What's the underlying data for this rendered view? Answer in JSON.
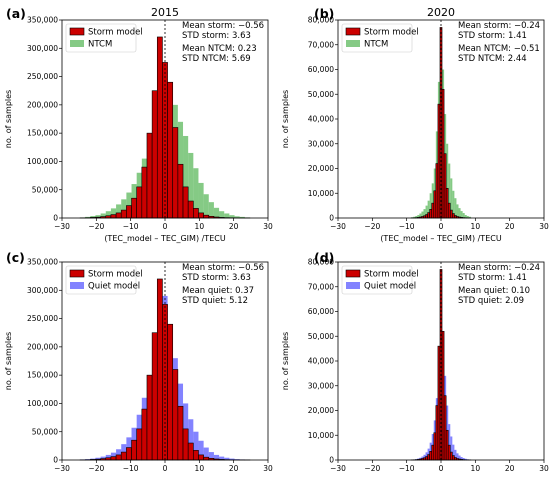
{
  "chart_data": [
    {
      "panel": "(a)",
      "type": "bar",
      "title": "2015",
      "xlabel": "(TEC_model – TEC_GIM) /TECU",
      "ylabel": "no. of samples",
      "xlim": [
        -30,
        30
      ],
      "ylim": [
        0,
        350000
      ],
      "xticks": [
        -30,
        -20,
        -10,
        0,
        10,
        20,
        30
      ],
      "yticks": [
        0,
        50000,
        100000,
        150000,
        200000,
        250000,
        300000,
        350000
      ],
      "ytick_labels": [
        "0",
        "50,000",
        "100,000",
        "150,000",
        "200,000",
        "250,000",
        "300,000",
        "350,000"
      ],
      "bin_width": 1.5,
      "x": [
        -24,
        -22.5,
        -21,
        -19.5,
        -18,
        -16.5,
        -15,
        -13.5,
        -12,
        -10.5,
        -9,
        -7.5,
        -6,
        -4.5,
        -3,
        -1.5,
        0,
        1.5,
        3,
        4.5,
        6,
        7.5,
        9,
        10.5,
        12,
        13.5,
        15,
        16.5,
        18,
        19.5,
        21,
        22.5,
        24
      ],
      "series": [
        {
          "name": "NTCM",
          "color": "#5cb85c",
          "opacity": 0.75,
          "values": [
            1000,
            2000,
            3500,
            5000,
            8000,
            12000,
            17000,
            24000,
            33000,
            45000,
            60000,
            80000,
            105000,
            135000,
            165000,
            200000,
            245000,
            230000,
            200000,
            170000,
            145000,
            115000,
            88000,
            62000,
            42000,
            28000,
            18000,
            12000,
            8000,
            5000,
            3000,
            2000,
            1000
          ]
        },
        {
          "name": "Storm model",
          "color": "#cc0000",
          "opacity": 1.0,
          "values": [
            200,
            500,
            1000,
            1500,
            2500,
            4000,
            6000,
            9000,
            14000,
            22000,
            35000,
            55000,
            90000,
            150000,
            225000,
            320000,
            275000,
            240000,
            160000,
            95000,
            55000,
            30000,
            17000,
            9000,
            5000,
            3000,
            1800,
            1000,
            600,
            400,
            300,
            200,
            100
          ]
        }
      ],
      "legend_loc": "top-left",
      "annotations": [
        "Mean storm: −0.56",
        "STD storm: 3.63",
        "Mean NTCM: 0.23",
        "STD NTCM: 5.69"
      ]
    },
    {
      "panel": "(b)",
      "type": "bar",
      "title": "2020",
      "xlabel": "(TEC_model – TEC_GIM) /TECU",
      "ylabel": "no. of samples",
      "xlim": [
        -30,
        30
      ],
      "ylim": [
        0,
        80000
      ],
      "xticks": [
        -30,
        -20,
        -10,
        0,
        10,
        20,
        30
      ],
      "yticks": [
        0,
        10000,
        20000,
        30000,
        40000,
        50000,
        60000,
        70000,
        80000
      ],
      "ytick_labels": [
        "0",
        "10,000",
        "20,000",
        "30,000",
        "40,000",
        "50,000",
        "60,000",
        "70,000",
        "80,000"
      ],
      "bin_width": 0.6,
      "x": [
        -8.4,
        -7.8,
        -7.2,
        -6.6,
        -6,
        -5.4,
        -4.8,
        -4.2,
        -3.6,
        -3,
        -2.4,
        -1.8,
        -1.2,
        -0.6,
        0,
        0.6,
        1.2,
        1.8,
        2.4,
        3,
        3.6,
        4.2,
        4.8,
        5.4,
        6,
        6.6,
        7.2,
        7.8,
        8.4
      ],
      "series": [
        {
          "name": "NTCM",
          "color": "#5cb85c",
          "opacity": 0.75,
          "values": [
            300,
            500,
            800,
            1200,
            1800,
            2600,
            3600,
            5000,
            7000,
            10000,
            14000,
            20000,
            35000,
            55000,
            67000,
            60000,
            42000,
            30000,
            22000,
            16000,
            11000,
            8000,
            5500,
            4000,
            2800,
            2000,
            1200,
            800,
            500
          ]
        },
        {
          "name": "Storm model",
          "color": "#cc0000",
          "opacity": 1.0,
          "values": [
            50,
            100,
            150,
            250,
            400,
            600,
            900,
            1400,
            2200,
            3500,
            6000,
            11000,
            22000,
            46000,
            77000,
            52000,
            26000,
            12000,
            6000,
            3200,
            1800,
            1000,
            600,
            400,
            250,
            150,
            100,
            60,
            40
          ]
        }
      ],
      "legend_loc": "top-left",
      "annotations": [
        "Mean storm: −0.24",
        "STD storm: 1.41",
        "Mean NTCM: −0.51",
        "STD NTCM: 2.44"
      ]
    },
    {
      "panel": "(c)",
      "type": "bar",
      "title": "",
      "xlabel": "(TEC_model – TEC_GIM) /TECU",
      "ylabel": "no. of samples",
      "xlim": [
        -30,
        30
      ],
      "ylim": [
        0,
        350000
      ],
      "xticks": [
        -30,
        -20,
        -10,
        0,
        10,
        20,
        30
      ],
      "yticks": [
        0,
        50000,
        100000,
        150000,
        200000,
        250000,
        300000,
        350000
      ],
      "ytick_labels": [
        "0",
        "50,000",
        "100,000",
        "150,000",
        "200,000",
        "250,000",
        "300,000",
        "350,000"
      ],
      "bin_width": 1.5,
      "x": [
        -24,
        -22.5,
        -21,
        -19.5,
        -18,
        -16.5,
        -15,
        -13.5,
        -12,
        -10.5,
        -9,
        -7.5,
        -6,
        -4.5,
        -3,
        -1.5,
        0,
        1.5,
        3,
        4.5,
        6,
        7.5,
        9,
        10.5,
        12,
        13.5,
        15,
        16.5,
        18,
        19.5,
        21,
        22.5,
        24
      ],
      "series": [
        {
          "name": "Quiet model",
          "color": "#5a5aff",
          "opacity": 0.75,
          "values": [
            1000,
            1500,
            2500,
            4000,
            6000,
            9000,
            13000,
            19000,
            28000,
            40000,
            57000,
            80000,
            110000,
            150000,
            200000,
            260000,
            290000,
            230000,
            180000,
            135000,
            100000,
            72000,
            50000,
            34000,
            22000,
            14000,
            9000,
            6000,
            4000,
            2500,
            1500,
            1000,
            500
          ]
        },
        {
          "name": "Storm model",
          "color": "#cc0000",
          "opacity": 1.0,
          "values": [
            200,
            500,
            1000,
            1500,
            2500,
            4000,
            6000,
            9000,
            14000,
            22000,
            35000,
            55000,
            90000,
            150000,
            225000,
            320000,
            275000,
            240000,
            160000,
            95000,
            55000,
            30000,
            17000,
            9000,
            5000,
            3000,
            1800,
            1000,
            600,
            400,
            300,
            200,
            100
          ]
        }
      ],
      "legend_loc": "top-left",
      "annotations": [
        "Mean storm: −0.56",
        "STD storm: 3.63",
        "Mean quiet: 0.37",
        "STD quiet: 5.12"
      ]
    },
    {
      "panel": "(d)",
      "type": "bar",
      "title": "",
      "xlabel": "(TEC_model – TEC_GIM) /TECU",
      "ylabel": "no. of samples",
      "xlim": [
        -30,
        30
      ],
      "ylim": [
        0,
        80000
      ],
      "xticks": [
        -30,
        -20,
        -10,
        0,
        10,
        20,
        30
      ],
      "yticks": [
        0,
        10000,
        20000,
        30000,
        40000,
        50000,
        60000,
        70000,
        80000
      ],
      "ytick_labels": [
        "0",
        "10,000",
        "20,000",
        "30,000",
        "40,000",
        "50,000",
        "60,000",
        "70,000",
        "80,000"
      ],
      "bin_width": 0.6,
      "x": [
        -8.4,
        -7.8,
        -7.2,
        -6.6,
        -6,
        -5.4,
        -4.8,
        -4.2,
        -3.6,
        -3,
        -2.4,
        -1.8,
        -1.2,
        -0.6,
        0,
        0.6,
        1.2,
        1.8,
        2.4,
        3,
        3.6,
        4.2,
        4.8,
        5.4,
        6,
        6.6,
        7.2,
        7.8,
        8.4
      ],
      "series": [
        {
          "name": "Quiet model",
          "color": "#5a5aff",
          "opacity": 0.75,
          "values": [
            100,
            200,
            350,
            600,
            900,
            1400,
            2100,
            3100,
            4600,
            7000,
            10500,
            16000,
            25000,
            40000,
            58000,
            50000,
            34000,
            22000,
            14500,
            9500,
            6200,
            4100,
            2700,
            1800,
            1200,
            800,
            500,
            300,
            200
          ]
        },
        {
          "name": "Storm model",
          "color": "#cc0000",
          "opacity": 1.0,
          "values": [
            50,
            100,
            150,
            250,
            400,
            600,
            900,
            1400,
            2200,
            3500,
            6000,
            11000,
            22000,
            46000,
            77000,
            52000,
            26000,
            12000,
            6000,
            3200,
            1800,
            1000,
            600,
            400,
            250,
            150,
            100,
            60,
            40
          ]
        }
      ],
      "legend_loc": "top-left",
      "annotations": [
        "Mean storm: −0.24",
        "STD storm: 1.41",
        "Mean quiet: 0.10",
        "STD quiet: 2.09"
      ]
    }
  ]
}
